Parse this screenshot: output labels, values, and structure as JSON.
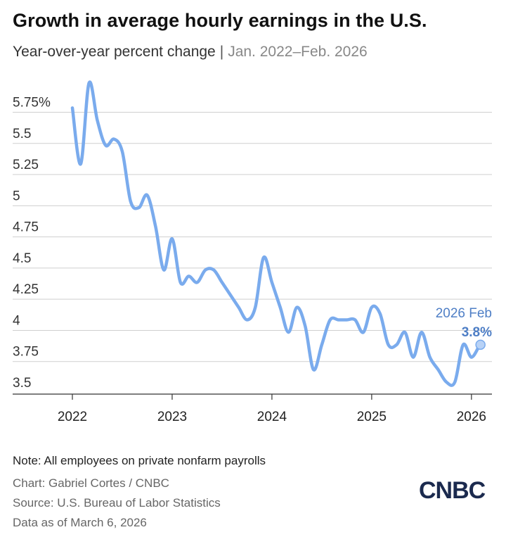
{
  "header": {
    "title": "Growth in average hourly earnings in the U.S.",
    "subtitle": "Year-over-year percent change",
    "separator": "|",
    "date_range": "Jan. 2022–Feb. 2026"
  },
  "chart_data": {
    "type": "line",
    "series": [
      {
        "name": "Average hourly earnings, YoY % change",
        "x": [
          "2022-01",
          "2022-02",
          "2022-03",
          "2022-04",
          "2022-05",
          "2022-06",
          "2022-07",
          "2022-08",
          "2022-09",
          "2022-10",
          "2022-11",
          "2022-12",
          "2023-01",
          "2023-02",
          "2023-03",
          "2023-04",
          "2023-05",
          "2023-06",
          "2023-07",
          "2023-08",
          "2023-09",
          "2023-10",
          "2023-11",
          "2023-12",
          "2024-01",
          "2024-02",
          "2024-03",
          "2024-04",
          "2024-05",
          "2024-06",
          "2024-07",
          "2024-08",
          "2024-09",
          "2024-10",
          "2024-11",
          "2024-12",
          "2025-01",
          "2025-02",
          "2025-03",
          "2025-04",
          "2025-05",
          "2025-06",
          "2025-07",
          "2025-08",
          "2025-09",
          "2025-10",
          "2025-11",
          "2025-12",
          "2026-01",
          "2026-02"
        ],
        "values": [
          5.7,
          5.25,
          5.9,
          5.6,
          5.4,
          5.45,
          5.35,
          4.95,
          4.9,
          5.0,
          4.75,
          4.4,
          4.65,
          4.3,
          4.35,
          4.3,
          4.4,
          4.4,
          4.3,
          4.2,
          4.1,
          4.0,
          4.1,
          4.5,
          4.3,
          4.1,
          3.9,
          4.1,
          3.95,
          3.6,
          3.8,
          4.0,
          4.0,
          4.0,
          4.0,
          3.9,
          4.1,
          4.05,
          3.8,
          3.8,
          3.9,
          3.7,
          3.9,
          3.7,
          3.6,
          3.5,
          3.5,
          3.8,
          3.7,
          3.8
        ]
      }
    ],
    "ylim": [
      3.4,
      5.85
    ],
    "yticks": [
      3.5,
      3.75,
      4,
      4.25,
      4.5,
      4.75,
      5,
      5.25,
      5.5,
      5.75
    ],
    "ytick_labels": [
      "3.5",
      "3.75",
      "4",
      "4.25",
      "4.5",
      "4.75",
      "5",
      "5.25",
      "5.5",
      "5.75%"
    ],
    "xtick_labels": [
      "2022",
      "2023",
      "2024",
      "2025",
      "2026"
    ],
    "xlabel": "",
    "ylabel": "",
    "line_color": "#7aabed",
    "grid": true,
    "annotation": {
      "label": "2026 Feb",
      "value_label": "3.8%",
      "value": 3.8,
      "color": "#4f7fc6"
    }
  },
  "footer": {
    "note": "Note: All employees on private nonfarm payrolls",
    "credit": "Chart: Gabriel Cortes / CNBC",
    "source": "Source: U.S. Bureau of Labor Statistics",
    "as_of": "Data as of March 6, 2026",
    "logo_text": "CNBC"
  }
}
